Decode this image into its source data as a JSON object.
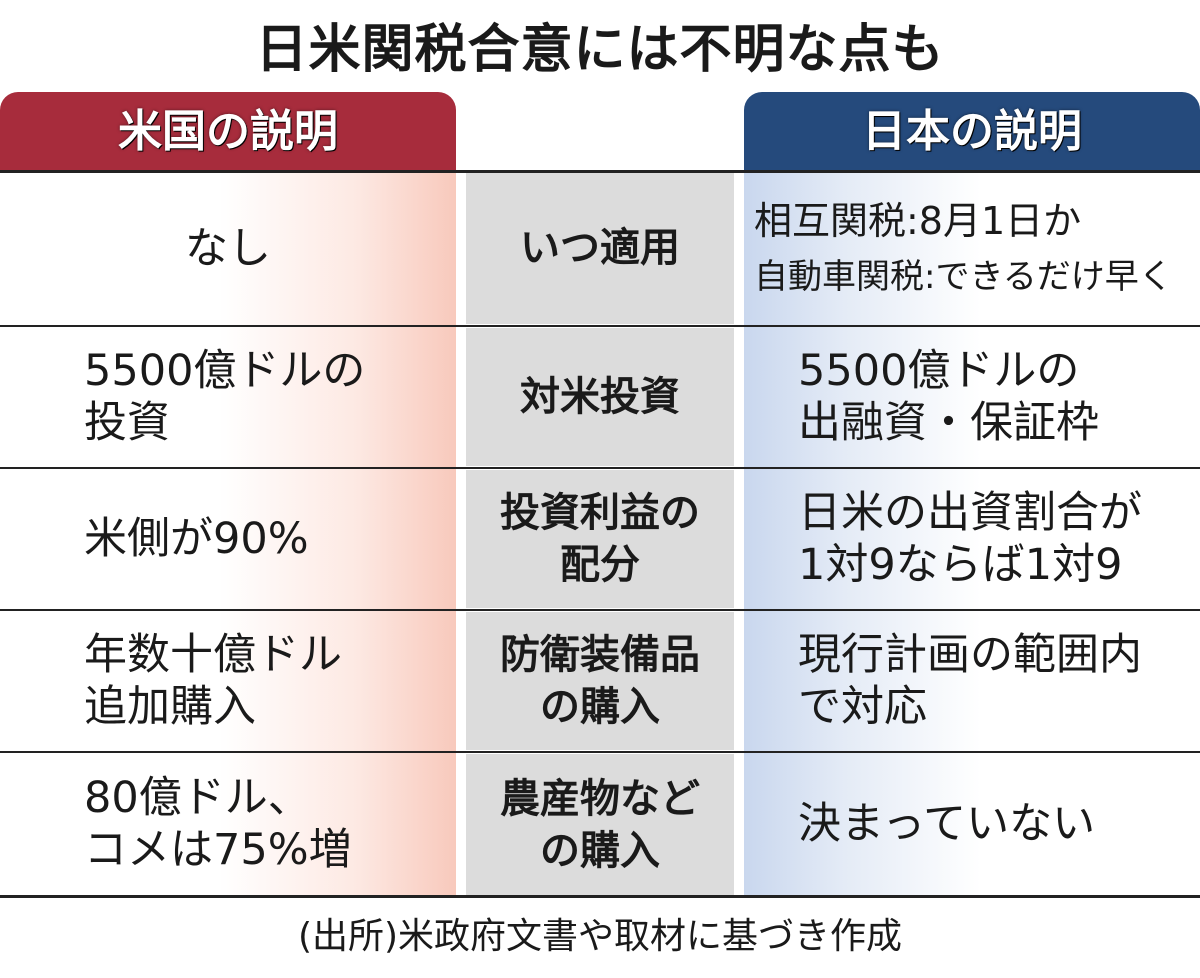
{
  "title": "日米関税合意には不明な点も",
  "headers": {
    "us": "米国の説明",
    "japan": "日本の説明"
  },
  "colors": {
    "us_header": "#a72c3c",
    "japan_header": "#254a7c",
    "middle_fill": "#dcdcdc"
  },
  "rows": [
    {
      "topic": "いつ適用",
      "us": "なし",
      "japan_lines": [
        "相互関税:8月1日か",
        "自動車関税:できるだけ早く"
      ]
    },
    {
      "topic": "対米投資",
      "us": "5500億ドルの\n投資",
      "japan": "5500億ドルの\n出融資・保証枠"
    },
    {
      "topic": "投資利益の\n配分",
      "us": "米側が90%",
      "japan": "日米の出資割合が\n1対9ならば1対9"
    },
    {
      "topic": "防衛装備品\nの購入",
      "us": "年数十億ドル\n追加購入",
      "japan": "現行計画の範囲内\nで対応"
    },
    {
      "topic": "農産物など\nの購入",
      "us": "80億ドル、\nコメは75%増",
      "japan": "決まっていない"
    }
  ],
  "source": "(出所)米政府文書や取材に基づき作成"
}
